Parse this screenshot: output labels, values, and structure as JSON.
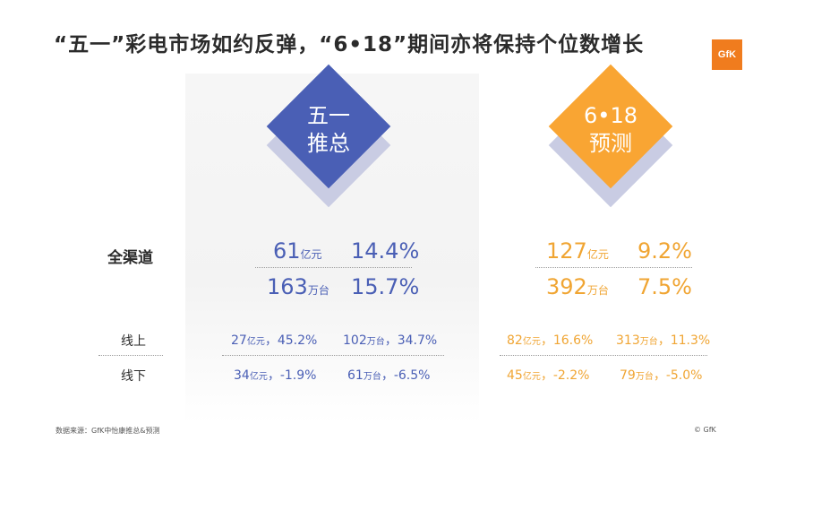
{
  "title": "“五一”彩电市场如约反弹，“6•18”期间亦将保持个位数增长",
  "logo": "GfK",
  "colors": {
    "blue": "#4a5fb5",
    "orange": "#f9a533",
    "shadow": "#c9cce3"
  },
  "left": {
    "diamond": {
      "line1": "五一",
      "line2": "推总"
    },
    "all": {
      "sales": "61",
      "sales_unit": "亿元",
      "sales_growth": "14.4%",
      "volume": "163",
      "volume_unit": "万台",
      "volume_growth": "15.7%"
    },
    "online": {
      "sales": "27",
      "sales_unit": "亿元",
      "sales_growth": "，45.2%",
      "volume": "102",
      "volume_unit": "万台",
      "volume_growth": "，34.7%"
    },
    "offline": {
      "sales": "34",
      "sales_unit": "亿元",
      "sales_growth": "，-1.9%",
      "volume": "61",
      "volume_unit": "万台",
      "volume_growth": "，-6.5%"
    }
  },
  "right": {
    "diamond": {
      "line1": "6•18",
      "line2": "预测"
    },
    "all": {
      "sales": "127",
      "sales_unit": "亿元",
      "sales_growth": "9.2%",
      "volume": "392",
      "volume_unit": "万台",
      "volume_growth": "7.5%"
    },
    "online": {
      "sales": "82",
      "sales_unit": "亿元",
      "sales_growth": "，16.6%",
      "volume": "313",
      "volume_unit": "万台",
      "volume_growth": "，11.3%"
    },
    "offline": {
      "sales": "45",
      "sales_unit": "亿元",
      "sales_growth": "，-2.2%",
      "volume": "79",
      "volume_unit": "万台",
      "volume_growth": "，-5.0%"
    }
  },
  "labels": {
    "all": "全渠道",
    "online": "线上",
    "offline": "线下"
  },
  "footer": {
    "source": "数据来源：GfK中怡康推总&预测",
    "copyright": "© GfK"
  }
}
